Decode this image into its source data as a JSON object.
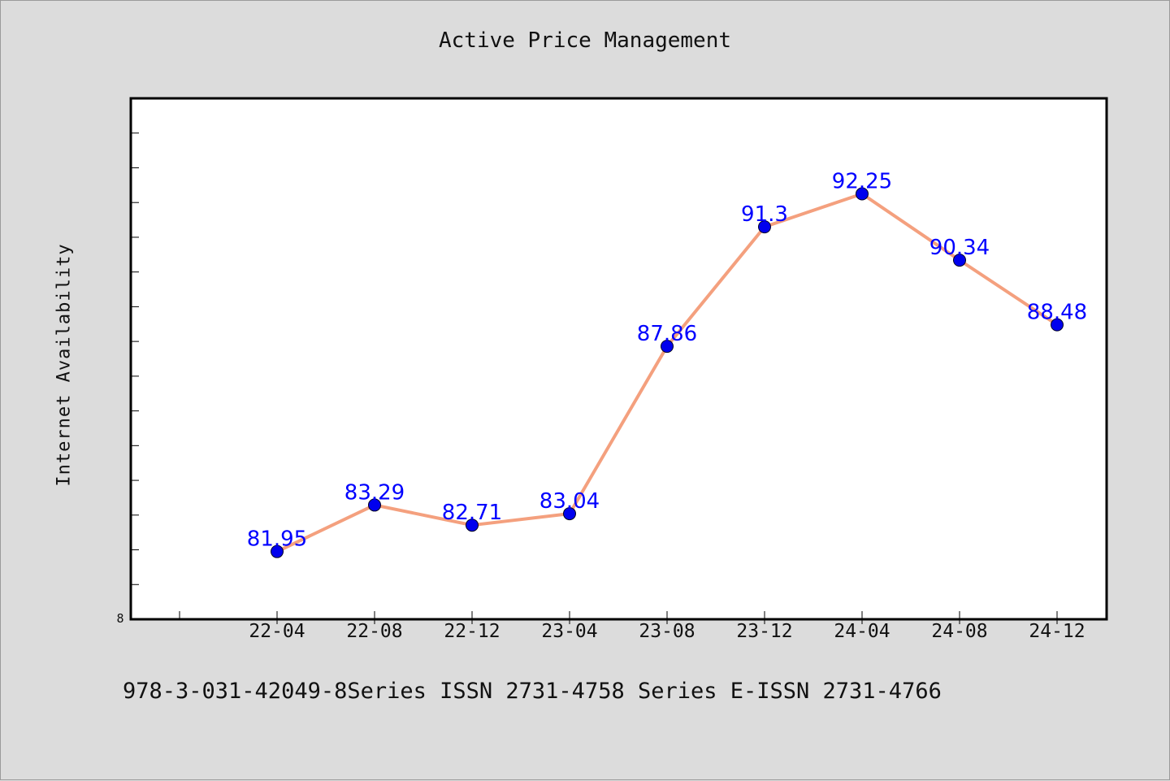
{
  "chart_data": {
    "type": "line",
    "title": "Active Price Management",
    "ylabel": "Internet Availability",
    "xlabel": "",
    "categories": [
      "22-04",
      "22-08",
      "22-12",
      "23-04",
      "23-08",
      "23-12",
      "24-04",
      "24-08",
      "24-12"
    ],
    "series": [
      {
        "values": [
          81.95,
          83.29,
          82.71,
          83.04,
          87.86,
          91.3,
          92.25,
          90.34,
          88.48
        ]
      }
    ],
    "data_labels": [
      "81.95",
      "83.29",
      "82.71",
      "83.04",
      "87.86",
      "91.3",
      "92.25",
      "90.34",
      "88.48"
    ],
    "y_tick_label": "8",
    "ylim": [
      80,
      95
    ],
    "grid": false,
    "legend": "none",
    "colors": {
      "line": "#f4a07e",
      "marker": "#0000ee",
      "data_label": "#0000ff",
      "plot_background": "#ffffff",
      "page_background": "#dcdcdc"
    }
  },
  "footer": {
    "text": "978-3-031-42049-8Series ISSN 2731-4758 Series E-ISSN 2731-4766"
  }
}
